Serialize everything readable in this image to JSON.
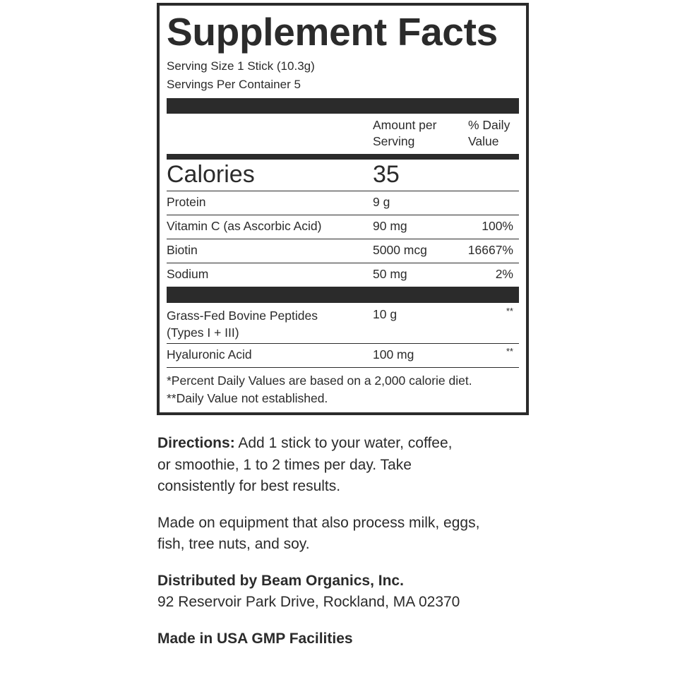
{
  "label": {
    "title": "Supplement Facts",
    "serving_size": "Serving Size 1 Stick (10.3g)",
    "servings_per_container": "Servings Per Container 5",
    "header": {
      "amount_line1": "Amount per",
      "amount_line2": "Serving",
      "dv_line1": "% Daily",
      "dv_line2": "Value"
    },
    "calories": {
      "label": "Calories",
      "value": "35"
    },
    "nutrients": [
      {
        "name": "Protein",
        "amount": "9 g",
        "dv": ""
      },
      {
        "name": "Vitamin C (as Ascorbic Acid)",
        "amount": "90 mg",
        "dv": "100%"
      },
      {
        "name": "Biotin",
        "amount": "5000 mcg",
        "dv": "16667%"
      },
      {
        "name": "Sodium",
        "amount": "50 mg",
        "dv": "2%"
      }
    ],
    "other": [
      {
        "name_line1": "Grass-Fed Bovine Peptides",
        "name_line2": "(Types I + III)",
        "amount": "10 g",
        "dv": "**"
      },
      {
        "name": "Hyaluronic Acid",
        "amount": "100 mg",
        "dv": "**"
      }
    ],
    "footnote1": "*Percent Daily Values are based on a 2,000 calorie diet.",
    "footnote2": "**Daily Value not established."
  },
  "directions": {
    "label": "Directions:",
    "text": " Add 1 stick to your water, coffee, or smoothie, 1 to 2 times per day. Take consistently for best results."
  },
  "allergen": "Made on equipment that also process milk, eggs, fish, tree nuts, and soy.",
  "distributor": {
    "name": "Distributed by Beam Organics, Inc.",
    "address": "92 Reservoir Park Drive, Rockland, MA 02370"
  },
  "origin": "Made in USA GMP Facilities"
}
